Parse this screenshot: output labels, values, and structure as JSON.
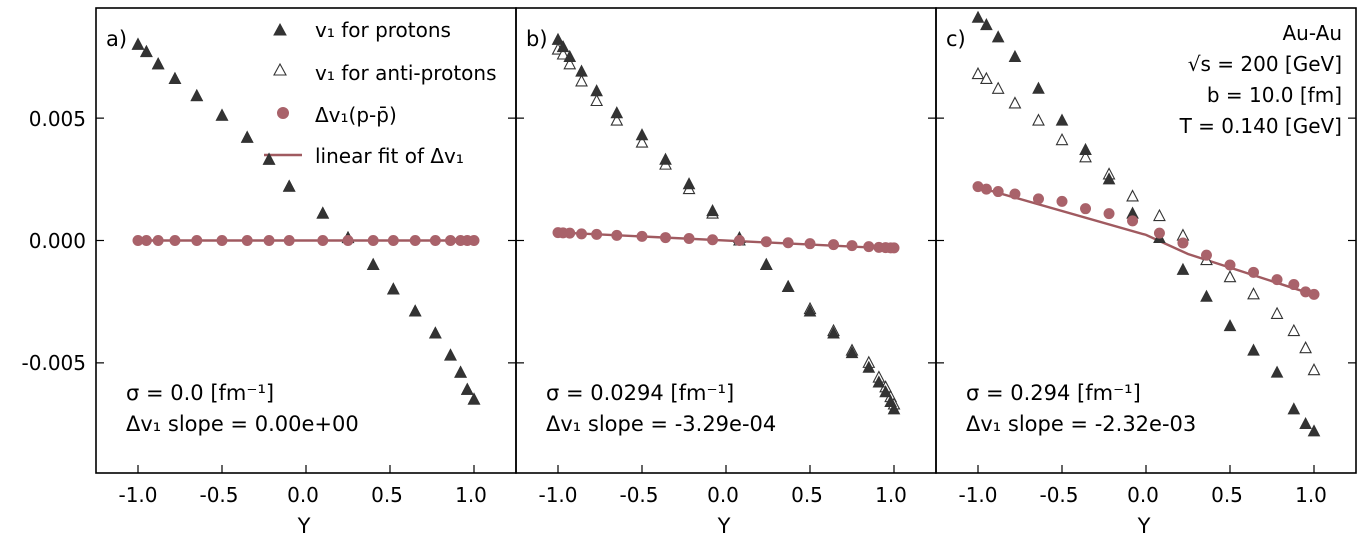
{
  "chart_data": [
    {
      "type": "scatter",
      "panel_label": "a)",
      "xlabel": "Y",
      "ylabel": "",
      "xlim": [
        -1.25,
        1.25
      ],
      "ylim": [
        -0.0095,
        0.0095
      ],
      "xticks": [
        "-1.0",
        "-0.5",
        "0.0",
        "0.5",
        "1.0"
      ],
      "yticks": [
        "0.005",
        "0.000",
        "-0.005"
      ],
      "sigma_text": "σ = 0.0 [fm⁻¹]",
      "slope_text": "Δv₁ slope = 0.00e+00",
      "x": [
        -1.0,
        -0.95,
        -0.88,
        -0.78,
        -0.65,
        -0.5,
        -0.35,
        -0.22,
        -0.1,
        0.1,
        0.25,
        0.4,
        0.52,
        0.65,
        0.77,
        0.86,
        0.92,
        0.96,
        1.0
      ],
      "series": [
        {
          "name": "v₁ for protons",
          "values": [
            0.008,
            0.0077,
            0.0072,
            0.0066,
            0.0059,
            0.0051,
            0.0042,
            0.0033,
            0.0022,
            0.0011,
            0.0001,
            -0.001,
            -0.002,
            -0.0029,
            -0.0038,
            -0.0047,
            -0.0054,
            -0.0061,
            -0.0065
          ]
        },
        {
          "name": "v₁ for anti-protons",
          "values": [
            0.008,
            0.0077,
            0.0072,
            0.0066,
            0.0059,
            0.0051,
            0.0042,
            0.0033,
            0.0022,
            0.0011,
            0.0001,
            -0.001,
            -0.002,
            -0.0029,
            -0.0038,
            -0.0047,
            -0.0054,
            -0.0061,
            -0.0065
          ]
        },
        {
          "name": "Δv₁(p-p̄)",
          "values": [
            0.0,
            0.0,
            0.0,
            0.0,
            0.0,
            0.0,
            0.0,
            0.0,
            0.0,
            0.0,
            0.0,
            0.0,
            0.0,
            0.0,
            0.0,
            0.0,
            0.0,
            0.0,
            0.0
          ]
        },
        {
          "name": "linear fit of Δv₁",
          "fit_points": [
            [
              -1.0,
              0.0
            ],
            [
              1.0,
              0.0
            ]
          ]
        }
      ]
    },
    {
      "type": "scatter",
      "panel_label": "b)",
      "xlabel": "Y",
      "xlim": [
        -1.25,
        1.25
      ],
      "ylim": [
        -0.0095,
        0.0095
      ],
      "xticks": [
        "-1.0",
        "-0.5",
        "0.0",
        "0.5",
        "1.0"
      ],
      "sigma_text": "σ = 0.0294 [fm⁻¹]",
      "slope_text": "Δv₁ slope = -3.29e-04",
      "x": [
        -1.0,
        -0.97,
        -0.93,
        -0.86,
        -0.77,
        -0.65,
        -0.5,
        -0.36,
        -0.22,
        -0.08,
        0.08,
        0.24,
        0.37,
        0.5,
        0.64,
        0.75,
        0.85,
        0.91,
        0.95,
        0.98,
        1.0
      ],
      "series": [
        {
          "name": "v₁ for protons",
          "values": [
            0.0082,
            0.0079,
            0.0075,
            0.0069,
            0.0061,
            0.0052,
            0.0043,
            0.0033,
            0.0023,
            0.0012,
            0.0001,
            -0.001,
            -0.0019,
            -0.0029,
            -0.0038,
            -0.0046,
            -0.0052,
            -0.0058,
            -0.0062,
            -0.0066,
            -0.0069
          ]
        },
        {
          "name": "v₁ for anti-protons",
          "values": [
            0.0078,
            0.0076,
            0.0072,
            0.0065,
            0.0057,
            0.0049,
            0.004,
            0.0031,
            0.0021,
            0.0011,
            0.0,
            -0.001,
            -0.0019,
            -0.0028,
            -0.0037,
            -0.0045,
            -0.005,
            -0.0056,
            -0.006,
            -0.0064,
            -0.0067
          ]
        },
        {
          "name": "Δv₁(p-p̄)",
          "values": [
            0.00032,
            0.00031,
            0.0003,
            0.00027,
            0.00025,
            0.00021,
            0.00017,
            0.00012,
            8e-05,
            3e-05,
            0.0,
            -5e-05,
            -9e-05,
            -0.00013,
            -0.00017,
            -0.00021,
            -0.00025,
            -0.00028,
            -0.00029,
            -0.0003,
            -0.0003
          ]
        },
        {
          "name": "linear fit of Δv₁",
          "fit_points": [
            [
              -1.0,
              0.00033
            ],
            [
              1.0,
              -0.00033
            ]
          ]
        }
      ]
    },
    {
      "type": "scatter",
      "panel_label": "c)",
      "xlabel": "Y",
      "xlim": [
        -1.25,
        1.25
      ],
      "ylim": [
        -0.0095,
        0.0095
      ],
      "xticks": [
        "-1.0",
        "-0.5",
        "0.0",
        "0.5",
        "1.0"
      ],
      "sigma_text": "σ = 0.294 [fm⁻¹]",
      "slope_text": "Δv₁ slope = -2.32e-03",
      "x": [
        -1.0,
        -0.95,
        -0.88,
        -0.78,
        -0.64,
        -0.5,
        -0.36,
        -0.22,
        -0.08,
        0.08,
        0.22,
        0.36,
        0.5,
        0.64,
        0.78,
        0.88,
        0.95,
        1.0
      ],
      "series": [
        {
          "name": "v₁ for protons",
          "values": [
            0.0091,
            0.0088,
            0.0083,
            0.0075,
            0.0062,
            0.0049,
            0.0037,
            0.0025,
            0.0011,
            0.0001,
            -0.0012,
            -0.0023,
            -0.0035,
            -0.0045,
            -0.0054,
            -0.0069,
            -0.0075,
            -0.0078
          ]
        },
        {
          "name": "v₁ for anti-protons",
          "values": [
            0.0068,
            0.0066,
            0.0062,
            0.0056,
            0.0049,
            0.0041,
            0.0034,
            0.0027,
            0.0018,
            0.001,
            0.0002,
            -0.0008,
            -0.0015,
            -0.0022,
            -0.003,
            -0.0037,
            -0.0044,
            -0.0053
          ]
        },
        {
          "name": "Δv₁(p-p̄)",
          "values": [
            0.0022,
            0.0021,
            0.002,
            0.0019,
            0.0017,
            0.0016,
            0.0013,
            0.0011,
            0.0008,
            0.0003,
            -0.0001,
            -0.0006,
            -0.001,
            -0.0013,
            -0.0016,
            -0.0018,
            -0.0021,
            -0.0022
          ]
        },
        {
          "name": "linear fit of Δv₁",
          "fit_points": [
            [
              -1.0,
              0.00218
            ],
            [
              0.0,
              0.00023
            ],
            [
              0.25,
              -0.00055
            ],
            [
              1.0,
              -0.00222
            ]
          ]
        }
      ],
      "annotation": {
        "line1": "Au-Au",
        "line2": "√s = 200 [GeV]",
        "line3": "b = 10.0 [fm]",
        "line4": "T = 0.140 [GeV]"
      }
    }
  ],
  "legend": {
    "placement": "top (panel a)",
    "items": [
      "v₁ for protons",
      "v₁ for anti-protons",
      "Δv₁(p-p̄)",
      "linear fit of Δv₁"
    ]
  },
  "colors": {
    "protons": "#333333",
    "anti_protons": "#333333",
    "delta": "#a9626a",
    "fit": "#a05a60"
  }
}
